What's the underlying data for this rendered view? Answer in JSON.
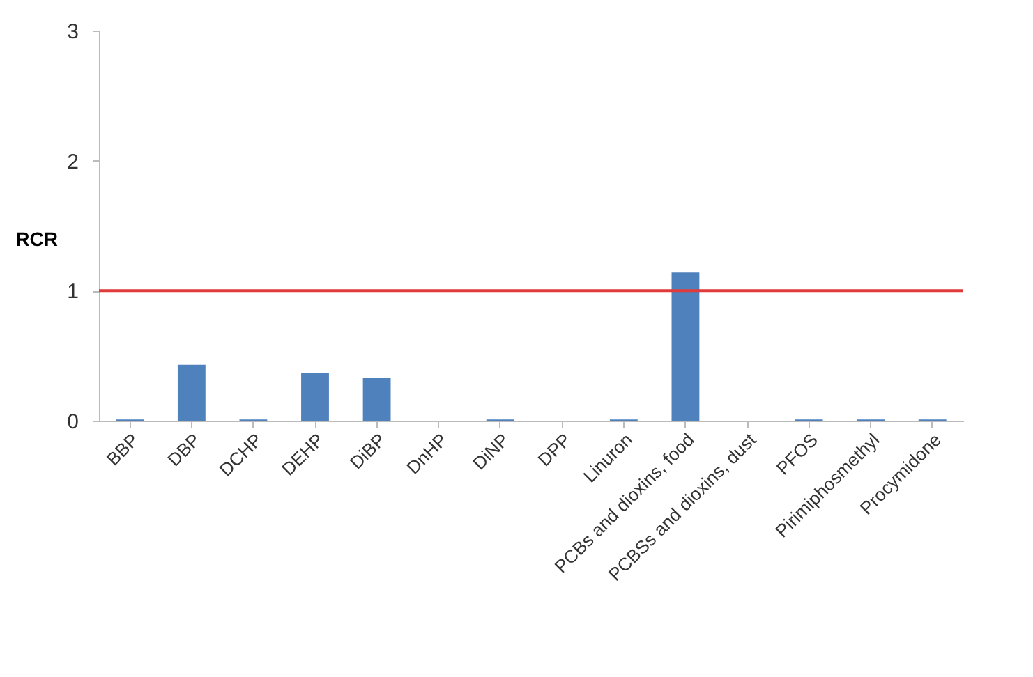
{
  "chart_data": {
    "type": "bar",
    "ylabel": "RCR",
    "categories": [
      "BBP",
      "DBP",
      "DCHP",
      "DEHP",
      "DiBP",
      "DnHP",
      "DiNP",
      "DPP",
      "Linuron",
      "PCBs and dioxins, food",
      "PCBSs and dioxins, dust",
      "PFOS",
      "Pirimiphosmethyl",
      "Procymidone"
    ],
    "values": [
      0.01,
      0.43,
      0.01,
      0.37,
      0.33,
      0,
      0.01,
      0,
      0.01,
      1.14,
      0,
      0.01,
      0.01,
      0.01
    ],
    "color": "#4f81bd",
    "ylim": [
      0,
      3
    ],
    "yticks": [
      0,
      1,
      2,
      3
    ],
    "ref_lines": [
      {
        "axis": "y",
        "value": 1,
        "color": "#e03a3a"
      }
    ]
  }
}
